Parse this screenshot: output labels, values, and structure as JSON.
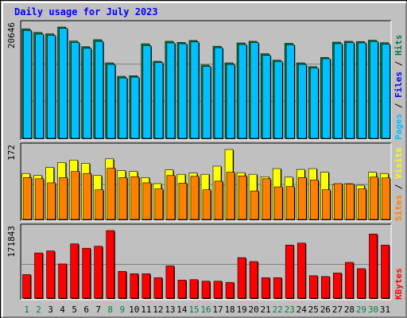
{
  "chart_data": {
    "type": "bar",
    "title": "Daily usage for July 2023",
    "x": [
      "1",
      "2",
      "3",
      "4",
      "5",
      "6",
      "7",
      "8",
      "9",
      "10",
      "11",
      "12",
      "13",
      "14",
      "15",
      "16",
      "17",
      "18",
      "19",
      "20",
      "21",
      "22",
      "23",
      "24",
      "25",
      "26",
      "27",
      "28",
      "29",
      "30",
      "31"
    ],
    "weekend_days": [
      "1",
      "2",
      "8",
      "9",
      "15",
      "16",
      "22",
      "23",
      "29",
      "30"
    ],
    "panels": [
      {
        "name": "pages-files-hits",
        "ymax_label": "20646",
        "ymax": 20646,
        "side_labels": [
          {
            "text": "Pages",
            "color": "#00c0ff"
          },
          {
            "text": " / ",
            "color": "#000000"
          },
          {
            "text": "Files",
            "color": "#0000ff"
          },
          {
            "text": " / ",
            "color": "#000000"
          },
          {
            "text": "Hits",
            "color": "#008040"
          }
        ],
        "series": [
          {
            "color": "#008040",
            "values": [
              20310,
              19650,
              19390,
              20646,
              18040,
              17000,
              18300,
              14000,
              11500,
              11600,
              17540,
              14300,
              18000,
              17800,
              18150,
              13600,
              17080,
              14000,
              17700,
              18000,
              15700,
              14500,
              17630,
              14000,
              13300,
              15000,
              17840,
              18000,
              17950,
              18200,
              17740
            ]
          },
          {
            "color": "#00c0ff",
            "values": [
              20000,
              19320,
              19100,
              20400,
              17780,
              16700,
              17980,
              13700,
              11200,
              11350,
              17200,
              14050,
              17700,
              17540,
              17880,
              13350,
              16800,
              13700,
              17400,
              17750,
              15380,
              14250,
              17360,
              13700,
              13050,
              14750,
              17560,
              17740,
              17700,
              17950,
              17450
            ]
          }
        ]
      },
      {
        "name": "visits-sites",
        "ymax_label": "172",
        "ymax": 172,
        "side_labels": [
          {
            "text": "Sites",
            "color": "#ff8000"
          },
          {
            "text": " / ",
            "color": "#000000"
          },
          {
            "text": "Visits",
            "color": "#ffff00"
          }
        ],
        "series": [
          {
            "color": "#ffff00",
            "values": [
              113,
              108,
              128,
              140,
              146,
              138,
              108,
              149,
              120,
              118,
              103,
              88,
              122,
              111,
              114,
              111,
              131,
              172,
              115,
              111,
              105,
              125,
              104,
              123,
              125,
              116,
              85,
              88,
              84,
              116,
              113
            ]
          },
          {
            "color": "#ff8000",
            "values": [
              103,
              100,
              90,
              103,
              118,
              113,
              73,
              126,
              103,
              105,
              90,
              75,
              108,
              89,
              106,
              73,
              94,
              116,
              107,
              70,
              100,
              80,
              81,
              103,
              97,
              73,
              88,
              87,
              75,
              104,
              102
            ]
          }
        ]
      },
      {
        "name": "kbytes",
        "ymax_label": "171843",
        "ymax": 171843,
        "side_labels": [
          {
            "text": "KBytes",
            "color": "#ff0000"
          }
        ],
        "series": [
          {
            "color": "#ff0000",
            "values": [
              60000,
              115000,
              120000,
              87000,
              138000,
              127000,
              132000,
              171843,
              68000,
              62000,
              62000,
              52000,
              82000,
              46000,
              47000,
              43000,
              43000,
              40000,
              103000,
              93000,
              52000,
              52000,
              135000,
              140000,
              57000,
              55000,
              64000,
              91000,
              75000,
              163000,
              135000
            ]
          }
        ]
      }
    ]
  }
}
